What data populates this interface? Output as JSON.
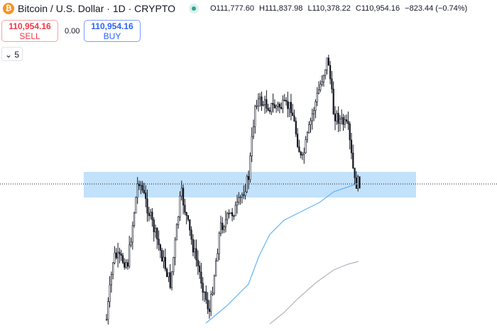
{
  "header": {
    "symbol_title": "Bitcoin / U.S. Dollar · 1D · CRYPTO",
    "icon": "bitcoin-icon",
    "status": "market-open-dot",
    "open": "O111,777.60",
    "high": "H111,837.98",
    "low": "L110,378.22",
    "close": "C110,954.16",
    "change": "−823.44 (−0.74%)"
  },
  "trade": {
    "sell_price": "110,954.16",
    "sell_label": "SELL",
    "spread": "0.00",
    "buy_price": "110,954.16",
    "buy_label": "BUY"
  },
  "indicators_toggle": {
    "count": "5"
  },
  "colors": {
    "up": "#131722",
    "zone": "#bbdefb",
    "ma_fast": "#64b5f6",
    "ma_slow": "#b2b5be",
    "sell": "#f23645",
    "buy": "#2962ff"
  }
}
